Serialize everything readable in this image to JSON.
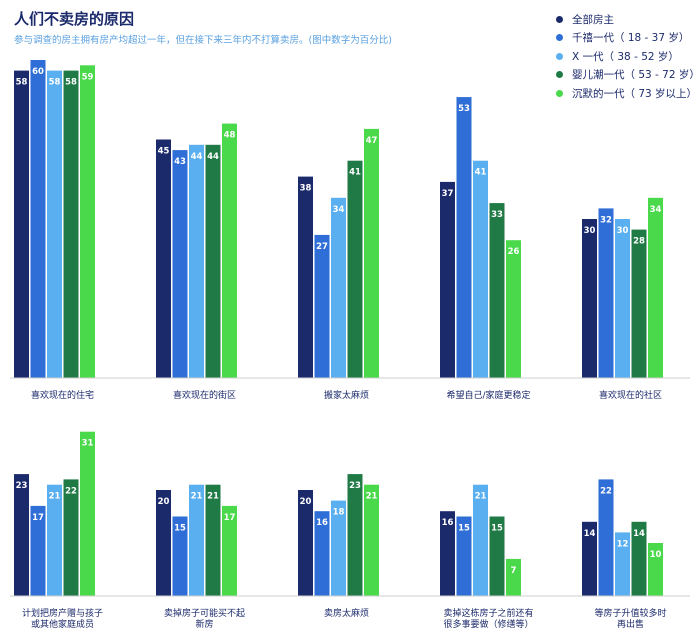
{
  "title": "人们不卖房的原因",
  "subtitle": "参与调查的房主拥有房产均超过一年，但在接下来三年内不打算卖房。(图中数字为百分比)",
  "colors": [
    "#1b2a6b",
    "#2e6ed6",
    "#5aaff0",
    "#1f7a45",
    "#4ad94a"
  ],
  "legend": [
    "全部房主",
    "千禧一代（ 18 - 37 岁）",
    "X 一代（ 38 - 52 岁）",
    "婴儿潮一代（ 53 - 72 岁）",
    "沉默的一代（ 73 岁以上）"
  ],
  "chart_data": {
    "type": "bar",
    "series": [
      {
        "name": "全部房主",
        "values": [
          58,
          45,
          38,
          37,
          30,
          23,
          20,
          20,
          16,
          14
        ]
      },
      {
        "name": "千禧一代（ 18 - 37 岁）",
        "values": [
          60,
          43,
          27,
          53,
          32,
          17,
          15,
          16,
          15,
          22
        ]
      },
      {
        "name": "X 一代（ 38 - 52 岁）",
        "values": [
          58,
          44,
          34,
          41,
          30,
          21,
          21,
          18,
          21,
          12
        ]
      },
      {
        "name": "婴儿潮一代（ 53 - 72 岁）",
        "values": [
          58,
          44,
          41,
          33,
          28,
          22,
          21,
          23,
          15,
          14
        ]
      },
      {
        "name": "沉默的一代（ 73 岁以上）",
        "values": [
          59,
          48,
          47,
          26,
          34,
          31,
          17,
          21,
          7,
          10
        ]
      }
    ],
    "groups": [
      {
        "label": [
          "喜欢现在的住宅"
        ]
      },
      {
        "label": [
          "喜欢现在的街区"
        ]
      },
      {
        "label": [
          "搬家太麻烦"
        ]
      },
      {
        "label": [
          "希望自己/家庭更稳定"
        ]
      },
      {
        "label": [
          "喜欢现在的社区"
        ]
      },
      {
        "label": [
          "计划把房产赠与孩子",
          "或其他家庭成员"
        ]
      },
      {
        "label": [
          "卖掉房子可能买不起",
          "新房"
        ]
      },
      {
        "label": [
          "卖房太麻烦"
        ]
      },
      {
        "label": [
          "卖掉这栋房子之前还有",
          "很多事要做（修缮等）"
        ]
      },
      {
        "label": [
          "等房子升值较多时",
          "再出售"
        ]
      }
    ]
  }
}
